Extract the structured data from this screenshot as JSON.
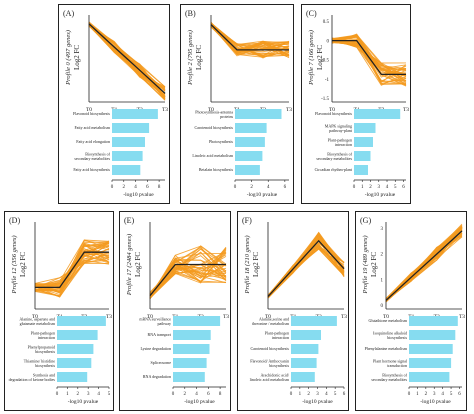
{
  "style": {
    "line_color": "#f39a1e",
    "mean_color": "#222222",
    "bar_color": "#86dcf0"
  },
  "axis_labels": {
    "y_profile": "Log2 FC",
    "x_bars": "-log10 pvalue"
  },
  "time_ticks": [
    "T0",
    "T1",
    "T2",
    "T3"
  ],
  "chart_data": [
    {
      "type": "line",
      "panel_label": "(A)",
      "profile_title": "Profile 0 (497 genes)",
      "ylabel": "Log2 FC",
      "x": [
        "T0",
        "T1",
        "T2",
        "T3"
      ],
      "yticks": [],
      "ylim": [
        -3.2,
        0.3
      ],
      "mean": [
        0,
        -1,
        -2,
        -3
      ],
      "band": [
        0.25,
        0.3
      ],
      "bars": {
        "type": "bar",
        "xlabel": "-log10 pvalue",
        "categories": [
          "Flavonoid biosynthesis",
          "Fatty acid metabolism",
          "Fatty acid elongation",
          "Biosynthesis of secondary metabolites",
          "Fatty acid biosynthesis"
        ],
        "values": [
          7.8,
          6.3,
          5.6,
          5.2,
          4.8
        ],
        "xticks": [
          0,
          2,
          4,
          6,
          8
        ],
        "xlim": [
          0,
          9
        ]
      }
    },
    {
      "type": "line",
      "panel_label": "(B)",
      "profile_title": "Profile 2 (795 genes)",
      "ylabel": "Log2 FC",
      "x": [
        "T0",
        "T1",
        "T2",
        "T3"
      ],
      "yticks": [],
      "ylim": [
        -2.9,
        0.3
      ],
      "mean": [
        0,
        -1,
        -1,
        -1
      ],
      "band": [
        0.25,
        0.35
      ],
      "bars": {
        "type": "bar",
        "xlabel": "-log10 pvalue",
        "categories": [
          "Photosynthesis-antenna proteins",
          "Carotenoid biosynthesis",
          "Photosynthesis",
          "Linoleic acid metabolism",
          "Betalain biosynthesis"
        ],
        "values": [
          5.6,
          3.8,
          3.6,
          3.3,
          3.0
        ],
        "xticks": [
          0,
          2,
          4,
          6
        ],
        "xlim": [
          0,
          6.5
        ]
      }
    },
    {
      "type": "line",
      "panel_label": "(C)",
      "profile_title": "Profile 7 (166 genes)",
      "ylabel": "Log2 FC",
      "x": [
        "T0",
        "T1",
        "T2",
        "T3"
      ],
      "yticks": [
        "0.5",
        "0",
        "-0.5",
        "-1",
        "-1.5"
      ],
      "ylim": [
        -1.7,
        0.7
      ],
      "mean": [
        0,
        0,
        -1,
        -1
      ],
      "band": [
        0.2,
        0.35
      ],
      "bars": {
        "type": "bar",
        "xlabel": "-log10 pvalue",
        "categories": [
          "Flavonoid biosynthesis",
          "MAPK signaling pathway-plant",
          "Plant-pathogen interaction",
          "Biosynthesis of secondary metabolites",
          "Circadian rhythm-plant"
        ],
        "values": [
          5.6,
          2.6,
          2.3,
          2.0,
          1.7
        ],
        "xticks": [
          0,
          1,
          2,
          3,
          4,
          5,
          6
        ],
        "xlim": [
          0,
          6.3
        ]
      }
    },
    {
      "type": "line",
      "panel_label": "(D)",
      "profile_title": "Profile 12 (356 genes)",
      "ylabel": "Log2 FC",
      "x": [
        "T0",
        "T1",
        "T2",
        "T3"
      ],
      "yticks": [],
      "ylim": [
        -0.5,
        1.8
      ],
      "mean": [
        0,
        0,
        1,
        1
      ],
      "band": [
        0.3,
        0.35
      ],
      "bars": {
        "type": "bar",
        "xlabel": "-log10 pvalue",
        "categories": [
          "Alanine, aspartate and glutamate metabolism",
          "Plant-pathogen interaction",
          "Phenylpropanoid biosynthesis",
          "Thiamine/ histidine biosynthesis",
          "Synthesis and degradation of ketone bodies"
        ],
        "values": [
          4.7,
          3.9,
          3.5,
          3.3,
          2.9
        ],
        "xticks": [
          0,
          1,
          2,
          3,
          4,
          5
        ],
        "xlim": [
          0,
          5
        ]
      }
    },
    {
      "type": "line",
      "panel_label": "(E)",
      "profile_title": "Profile 17 (2484 genes)",
      "ylabel": "Log2 FC",
      "x": [
        "T0",
        "T1",
        "T2",
        "T3"
      ],
      "yticks": [],
      "ylim": [
        -0.3,
        2.3
      ],
      "mean": [
        0,
        1,
        1,
        1
      ],
      "band": [
        0.3,
        0.6
      ],
      "bars": {
        "type": "bar",
        "xlabel": "-log10 pvalue",
        "categories": [
          "mRNA surveillance pathway",
          "RNA transport",
          "Lysine degradation",
          "Spliceosome",
          "RNA degradation"
        ],
        "values": [
          8.0,
          6.4,
          6.2,
          5.7,
          5.4
        ],
        "xticks": [
          0,
          2,
          4,
          6,
          8
        ],
        "xlim": [
          0,
          9
        ]
      }
    },
    {
      "type": "line",
      "panel_label": "(F)",
      "profile_title": "Profile 18 (210 genes)",
      "ylabel": "Log2 FC",
      "x": [
        "T0",
        "T1",
        "T2",
        "T3"
      ],
      "yticks": [],
      "ylim": [
        -0.3,
        2.6
      ],
      "mean": [
        0,
        1,
        2,
        1
      ],
      "band": [
        0.15,
        0.3
      ],
      "bars": {
        "type": "bar",
        "xlabel": "-log10 pvalue",
        "categories": [
          "Alanine,serine and threonine / metabolism",
          "Plant-pathogen interaction",
          "Carotenoid biosynthesis",
          "Flavonoid/ Anthocyanin biosynthesis",
          "Arachidonic acid/ linoleic acid metabolism"
        ],
        "values": [
          5.2,
          3.4,
          3.1,
          2.9,
          2.7
        ],
        "xticks": [
          0,
          1,
          2,
          3,
          4,
          5,
          6
        ],
        "xlim": [
          0,
          6
        ]
      }
    },
    {
      "type": "line",
      "panel_label": "(G)",
      "profile_title": "Profile 19 (489 genes)",
      "ylabel": "Log2 FC",
      "x": [
        "T0",
        "T1",
        "T2",
        "T3"
      ],
      "yticks": [
        "3",
        "2",
        "1",
        "0"
      ],
      "ylim": [
        -0.2,
        3.3
      ],
      "mean": [
        0,
        1,
        2,
        3
      ],
      "band": [
        0.2,
        0.3
      ],
      "bars": {
        "type": "bar",
        "xlabel": "-log10 pvalue",
        "categories": [
          "Glutathione metabolism",
          "Isoquinoline alkaloid biosynthesis",
          "Phenylalanine metabolism",
          "Plant hormone signal transduction",
          "Biosynthesis of secondary metabolites"
        ],
        "values": [
          5.8,
          5.5,
          5.2,
          5.0,
          4.8
        ],
        "xticks": [
          0,
          1,
          2,
          3,
          4,
          5,
          6
        ],
        "xlim": [
          0,
          6.3
        ]
      }
    }
  ]
}
